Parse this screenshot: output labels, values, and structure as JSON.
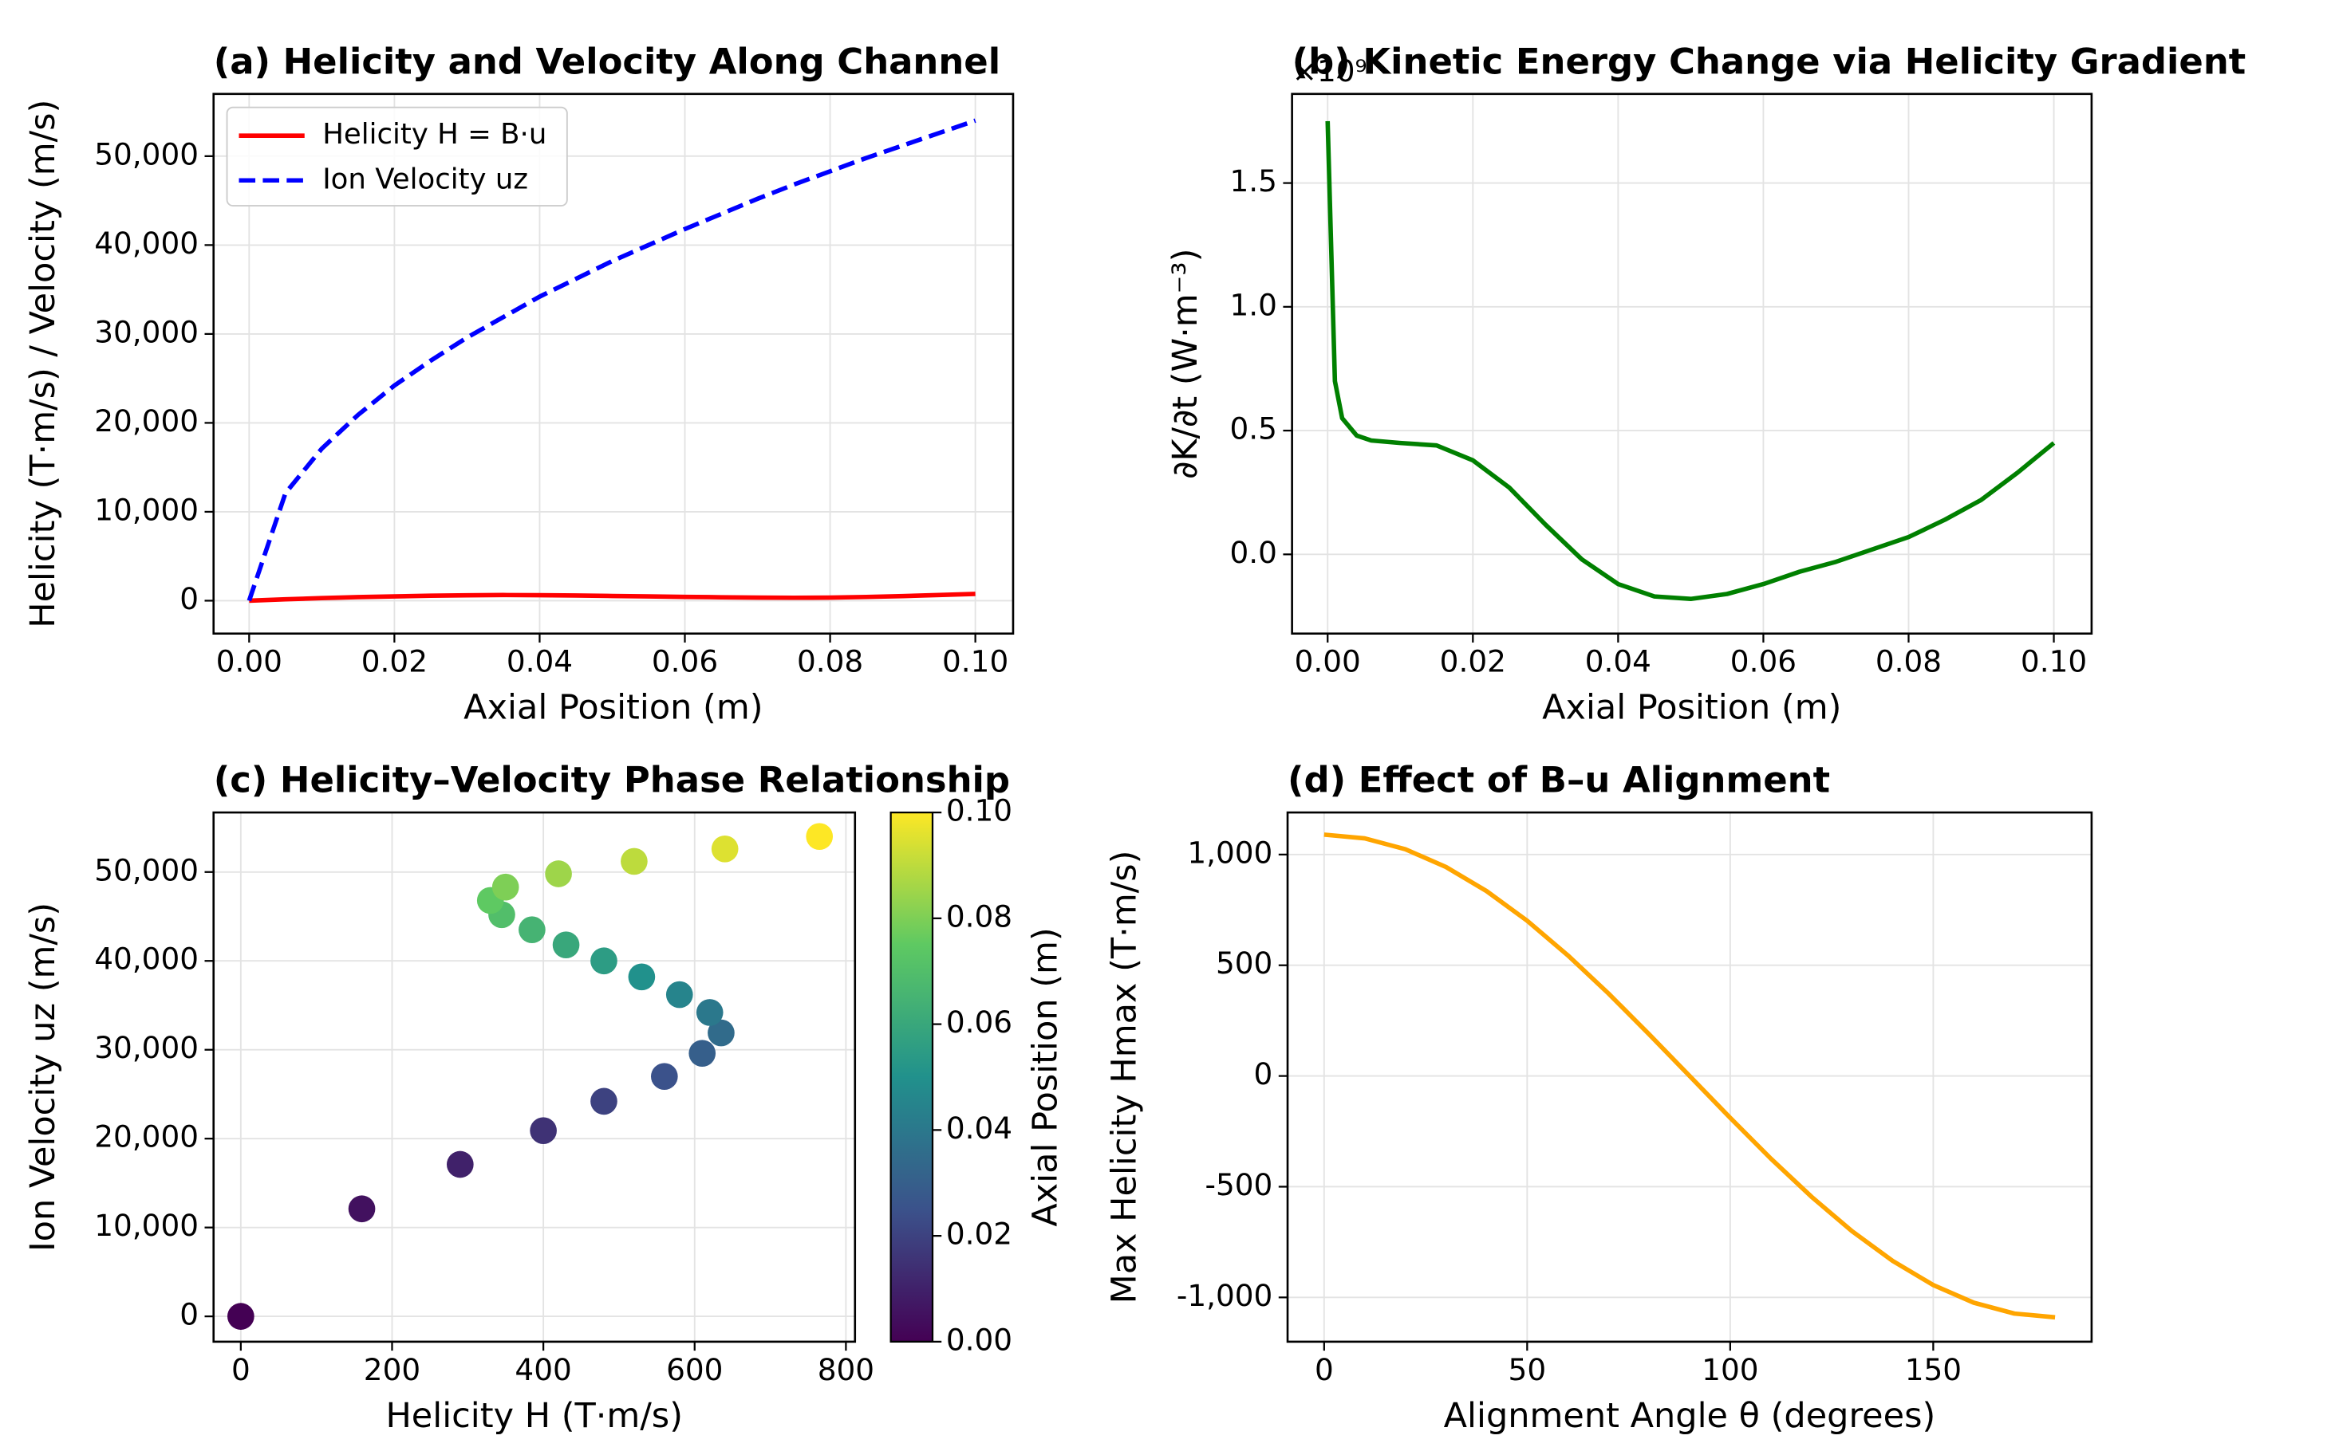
{
  "chart_data": [
    {
      "type": "line",
      "title": "(a) Helicity and Velocity Along Channel",
      "xlabel": "Axial Position (m)",
      "ylabel": "Helicity (T·m/s) / Velocity (m/s)",
      "x": [
        0,
        0.005,
        0.01,
        0.015,
        0.02,
        0.025,
        0.03,
        0.035,
        0.04,
        0.045,
        0.05,
        0.055,
        0.06,
        0.065,
        0.07,
        0.075,
        0.08,
        0.085,
        0.09,
        0.095,
        0.1
      ],
      "series": [
        {
          "name": "Helicity H = B·u",
          "color": "#ff0000",
          "linestyle": "solid",
          "values": [
            0,
            160,
            290,
            400,
            480,
            560,
            610,
            635,
            620,
            580,
            530,
            480,
            430,
            385,
            345,
            330,
            350,
            420,
            520,
            640,
            765
          ]
        },
        {
          "name": "Ion Velocity uz",
          "color": "#0000ff",
          "linestyle": "dashed",
          "values": [
            0,
            12100,
            17100,
            20900,
            24200,
            27000,
            29600,
            31900,
            34200,
            36200,
            38200,
            40000,
            41800,
            43500,
            45200,
            46800,
            48300,
            49800,
            51200,
            52600,
            54000
          ]
        }
      ],
      "xlim": [
        -0.0049,
        0.1052
      ],
      "ylim": [
        -3700,
        57000
      ],
      "xticks": [
        {
          "value": 0,
          "label": "0.00"
        },
        {
          "value": 0.02,
          "label": "0.02"
        },
        {
          "value": 0.04,
          "label": "0.04"
        },
        {
          "value": 0.06,
          "label": "0.06"
        },
        {
          "value": 0.08,
          "label": "0.08"
        },
        {
          "value": 0.1,
          "label": "0.10"
        }
      ],
      "yticks": [
        0,
        {
          "value": 10000,
          "label": "10,000"
        },
        {
          "value": 20000,
          "label": "20,000"
        },
        {
          "value": 30000,
          "label": "30,000"
        },
        {
          "value": 40000,
          "label": "40,000"
        },
        {
          "value": 50000,
          "label": "50,000"
        }
      ],
      "grid": true,
      "legend": "upper left"
    },
    {
      "type": "line",
      "title": "(b) Kinetic Energy Change via Helicity Gradient",
      "xlabel": "Axial Position (m)",
      "ylabel": "∂K/∂t (W·m⁻³)",
      "offset_label": "×10⁹",
      "x": [
        0,
        0.001,
        0.002,
        0.004,
        0.006,
        0.01,
        0.015,
        0.02,
        0.025,
        0.03,
        0.035,
        0.04,
        0.045,
        0.05,
        0.055,
        0.06,
        0.065,
        0.07,
        0.075,
        0.08,
        0.085,
        0.09,
        0.095,
        0.1
      ],
      "series": [
        {
          "color": "#008000",
          "linestyle": "solid",
          "values": [
            1.75,
            0.7,
            0.55,
            0.48,
            0.46,
            0.45,
            0.44,
            0.38,
            0.27,
            0.12,
            -0.02,
            -0.12,
            -0.17,
            -0.18,
            -0.16,
            -0.12,
            -0.07,
            -0.03,
            0.02,
            0.07,
            0.14,
            0.22,
            0.33,
            0.45
          ]
        }
      ],
      "xlim": [
        -0.0049,
        0.1052
      ],
      "ylim": [
        -0.32,
        1.86
      ],
      "xticks": [
        {
          "value": 0,
          "label": "0.00"
        },
        {
          "value": 0.02,
          "label": "0.02"
        },
        {
          "value": 0.04,
          "label": "0.04"
        },
        {
          "value": 0.06,
          "label": "0.06"
        },
        {
          "value": 0.08,
          "label": "0.08"
        },
        {
          "value": 0.1,
          "label": "0.10"
        }
      ],
      "yticks": [
        {
          "value": 0,
          "label": "0.0"
        },
        0.5,
        {
          "value": 1,
          "label": "1.0"
        },
        1.5
      ],
      "grid": true
    },
    {
      "type": "scatter",
      "title": "(c) Helicity–Velocity Phase Relationship",
      "xlabel": "Helicity H (T·m/s)",
      "ylabel": "Ion Velocity uz (m/s)",
      "x": [
        0,
        160,
        290,
        400,
        480,
        560,
        610,
        635,
        620,
        580,
        530,
        480,
        430,
        385,
        345,
        330,
        350,
        420,
        520,
        640,
        765
      ],
      "values": [
        0,
        12100,
        17100,
        20900,
        24200,
        27000,
        29600,
        31900,
        34200,
        36200,
        38200,
        40000,
        41800,
        43500,
        45200,
        46800,
        48300,
        49800,
        51200,
        52600,
        54000
      ],
      "c": [
        0,
        0.005,
        0.01,
        0.015,
        0.02,
        0.025,
        0.03,
        0.035,
        0.04,
        0.045,
        0.05,
        0.055,
        0.06,
        0.065,
        0.07,
        0.075,
        0.08,
        0.085,
        0.09,
        0.095,
        0.1
      ],
      "colormap": "viridis",
      "colorbar_label": "Axial Position (m)",
      "clim": [
        0,
        0.1
      ],
      "cticks": [
        {
          "value": 0,
          "label": "0.00"
        },
        {
          "value": 0.02,
          "label": "0.02"
        },
        {
          "value": 0.04,
          "label": "0.04"
        },
        {
          "value": 0.06,
          "label": "0.06"
        },
        {
          "value": 0.08,
          "label": "0.08"
        },
        {
          "value": 0.1,
          "label": "0.10"
        }
      ],
      "xlim": [
        -36,
        812
      ],
      "ylim": [
        -2850,
        56700
      ],
      "xticks": [
        0,
        200,
        400,
        600,
        800
      ],
      "yticks": [
        0,
        {
          "value": 10000,
          "label": "10,000"
        },
        {
          "value": 20000,
          "label": "20,000"
        },
        {
          "value": 30000,
          "label": "30,000"
        },
        {
          "value": 40000,
          "label": "40,000"
        },
        {
          "value": 50000,
          "label": "50,000"
        }
      ],
      "grid": true
    },
    {
      "type": "line",
      "title": "(d) Effect of B–u Alignment",
      "xlabel": "Alignment Angle θ (degrees)",
      "ylabel": "Max Helicity Hmax (T·m/s)",
      "x": [
        0,
        10,
        20,
        30,
        40,
        50,
        60,
        70,
        80,
        90,
        100,
        110,
        120,
        130,
        140,
        150,
        160,
        170,
        180
      ],
      "series": [
        {
          "color": "#ffa500",
          "linestyle": "solid",
          "values": [
            1090,
            1073,
            1024,
            944,
            835,
            701,
            545,
            373,
            189,
            0,
            -189,
            -373,
            -545,
            -701,
            -835,
            -944,
            -1024,
            -1073,
            -1090
          ]
        }
      ],
      "xlim": [
        -9,
        189
      ],
      "ylim": [
        -1200,
        1190
      ],
      "xticks": [
        0,
        50,
        100,
        150
      ],
      "yticks": [
        {
          "value": -1000,
          "label": "-1,000"
        },
        -500,
        0,
        500,
        {
          "value": 1000,
          "label": "1,000"
        }
      ],
      "grid": true
    }
  ]
}
